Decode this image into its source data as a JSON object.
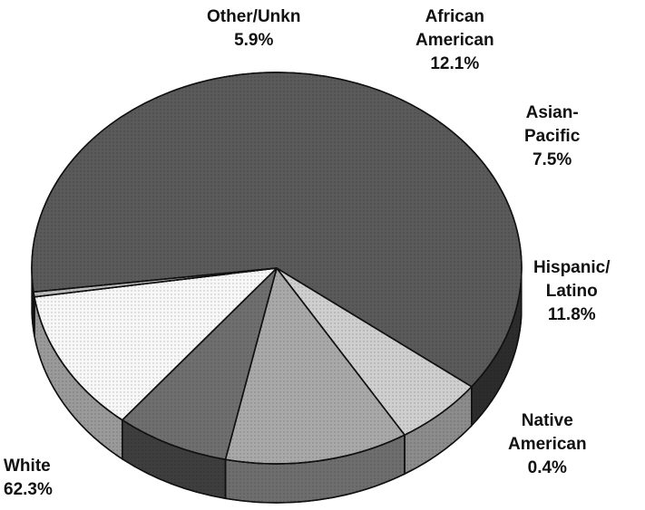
{
  "chart_data": {
    "type": "pie",
    "title": "",
    "slices": [
      {
        "label_lines": [
          "White"
        ],
        "value": 62.3,
        "value_label": "62.3%",
        "color": "#5a5a5a",
        "side_color": "#2c2c2c"
      },
      {
        "label_lines": [
          "Other/Unkn"
        ],
        "value": 5.9,
        "value_label": "5.9%",
        "color": "#cfcfcf",
        "side_color": "#8c8c8c"
      },
      {
        "label_lines": [
          "African",
          "American"
        ],
        "value": 12.1,
        "value_label": "12.1%",
        "color": "#a9a9a9",
        "side_color": "#6e6e6e"
      },
      {
        "label_lines": [
          "Asian-",
          "Pacific"
        ],
        "value": 7.5,
        "value_label": "7.5%",
        "color": "#6f6f6f",
        "side_color": "#3e3e3e"
      },
      {
        "label_lines": [
          "Hispanic/",
          "Latino"
        ],
        "value": 11.8,
        "value_label": "11.8%",
        "color": "#f7f7f7",
        "side_color": "#9a9a9a"
      },
      {
        "label_lines": [
          "Native",
          "American"
        ],
        "value": 0.4,
        "value_label": "0.4%",
        "color": "#bdbdbd",
        "side_color": "#7a7a7a"
      }
    ]
  }
}
